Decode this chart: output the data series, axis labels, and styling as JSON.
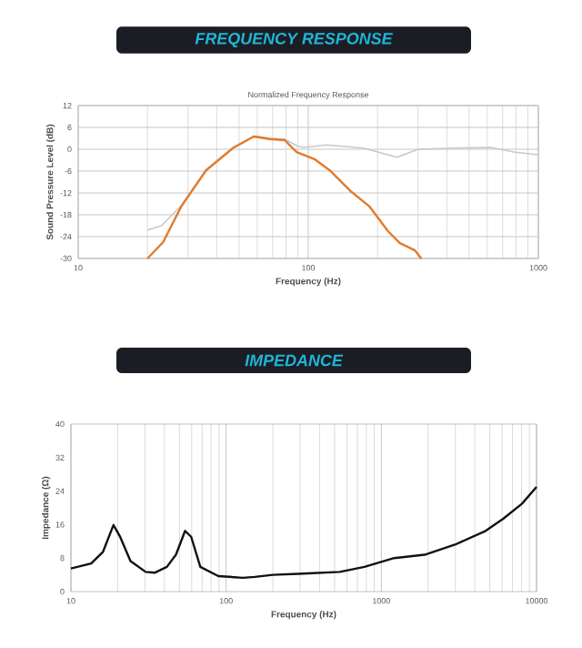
{
  "chart_data": [
    {
      "type": "line",
      "title": "FREQUENCY RESPONSE",
      "subtitle": "Normalized Frequency Response",
      "xlabel": "Frequency (Hz)",
      "ylabel": "Sound Pressure Level (dB)",
      "log": "x",
      "grid": true,
      "marker": "none",
      "line_style": "solid",
      "xlim": [
        10,
        1000
      ],
      "xticks": [
        10,
        100,
        1000
      ],
      "ylim": [
        -30,
        12
      ],
      "yticks": [
        -30,
        -24,
        -18,
        -12,
        -6,
        0,
        6,
        12
      ],
      "series": [
        {
          "color": "#c8c8c8",
          "x": [
            20,
            23,
            28,
            36,
            47,
            58,
            68,
            79,
            90,
            95,
            121,
            174,
            243,
            301,
            432,
            621,
            793,
            1000
          ],
          "values": [
            -22.2,
            -21,
            -15.5,
            -5.5,
            0.5,
            3.6,
            3,
            2.8,
            0.8,
            0.5,
            1.2,
            0.3,
            -2.2,
            0,
            0.3,
            0.5,
            -0.8,
            -1.5
          ]
        },
        {
          "color": "#e07b2e",
          "x": [
            20,
            23.4,
            28,
            36,
            47,
            58,
            68,
            79,
            89,
            107,
            124,
            154,
            185,
            222,
            250,
            291,
            310
          ],
          "values": [
            -30,
            -25.5,
            -15.8,
            -5.8,
            0.3,
            3.5,
            2.8,
            2.5,
            -0.8,
            -2.8,
            -5.8,
            -11.7,
            -15.8,
            -22.5,
            -25.8,
            -27.8,
            -30
          ]
        }
      ]
    },
    {
      "type": "line",
      "title": "IMPEDANCE",
      "xlabel": "Frequency (Hz)",
      "ylabel": "Impedance (Ω)",
      "log": "x",
      "grid": "x",
      "marker": "none",
      "line_style": "solid",
      "xlim": [
        10,
        10000
      ],
      "xticks": [
        10,
        100,
        1000,
        10000
      ],
      "ylim": [
        0,
        40
      ],
      "yticks": [
        0,
        8,
        16,
        24,
        32,
        40
      ],
      "series": [
        {
          "color": "#111111",
          "x": [
            10,
            13.5,
            16.1,
            18.8,
            20.8,
            24.2,
            30.3,
            34.6,
            41.5,
            47.5,
            54.4,
            59.5,
            68.2,
            89,
            128,
            153,
            200,
            315,
            540,
            778,
            1210,
            1900,
            2980,
            4700,
            6100,
            8070,
            10000
          ],
          "values": [
            5.5,
            6.7,
            9.5,
            15.9,
            13,
            7.3,
            4.7,
            4.5,
            5.9,
            8.8,
            14.5,
            13.1,
            5.9,
            3.7,
            3.3,
            3.5,
            4,
            4.3,
            4.7,
            5.9,
            8,
            8.8,
            11.2,
            14.5,
            17.4,
            21,
            25
          ]
        }
      ]
    }
  ]
}
